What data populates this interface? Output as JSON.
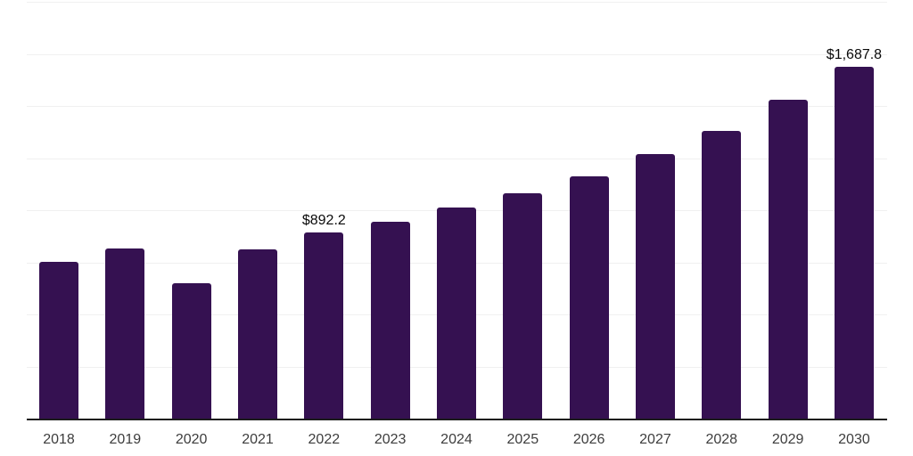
{
  "chart_data": {
    "type": "bar",
    "title": "",
    "xlabel": "",
    "ylabel": "",
    "categories": [
      "2018",
      "2019",
      "2020",
      "2021",
      "2022",
      "2023",
      "2024",
      "2025",
      "2026",
      "2027",
      "2028",
      "2029",
      "2030"
    ],
    "values": [
      751.5,
      817.0,
      649.5,
      812.0,
      892.2,
      946.5,
      1012.5,
      1083.3,
      1164.4,
      1268.6,
      1382.2,
      1530.4,
      1687.8
    ],
    "data_labels": [
      "",
      "",
      "",
      "",
      "$892.2",
      "",
      "",
      "",
      "",
      "",
      "",
      "",
      "$1,687.8"
    ],
    "ylim": [
      0,
      2000
    ],
    "gridline_values": [
      250,
      500,
      750,
      1000,
      1250,
      1500,
      1750,
      2000
    ],
    "grid": true,
    "legend_position": "none",
    "colors": {
      "bar": "#351151",
      "gridline": "#f0f0f0",
      "axis_line": "#1c1c1c",
      "tick_label": "#3d3d3d",
      "data_label": "#0a0a0a",
      "background": "#ffffff"
    }
  }
}
